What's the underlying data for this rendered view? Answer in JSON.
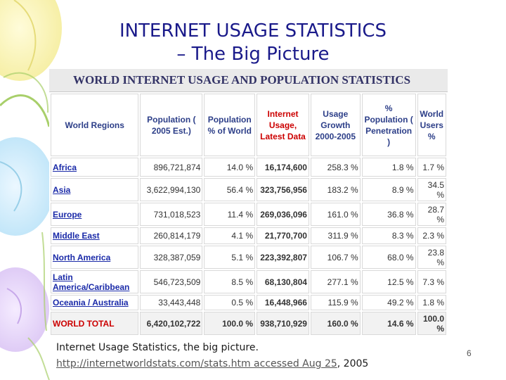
{
  "slide": {
    "title_line1": "INTERNET USAGE STATISTICS",
    "title_line2": "– The Big Picture",
    "page_number": "6"
  },
  "table": {
    "banner": "WORLD INTERNET USAGE AND POPULATION STATISTICS",
    "headers": [
      "World Regions",
      "Population ( 2005 Est.)",
      "Population % of World",
      "Internet Usage, Latest Data",
      "Usage Growth 2000-2005",
      "% Population ( Penetration )",
      "World Users %"
    ],
    "rows": [
      [
        "Africa",
        "896,721,874",
        "14.0 %",
        "16,174,600",
        "258.3 %",
        "1.8 %",
        "1.7 %"
      ],
      [
        "Asia",
        "3,622,994,130",
        "56.4 %",
        "323,756,956",
        "183.2 %",
        "8.9 %",
        "34.5 %"
      ],
      [
        "Europe",
        "731,018,523",
        "11.4 %",
        "269,036,096",
        "161.0 %",
        "36.8 %",
        "28.7 %"
      ],
      [
        "Middle East",
        "260,814,179",
        "4.1 %",
        "21,770,700",
        "311.9 %",
        "8.3 %",
        "2.3 %"
      ],
      [
        "North America",
        "328,387,059",
        "5.1 %",
        "223,392,807",
        "106.7 %",
        "68.0 %",
        "23.8 %"
      ],
      [
        "Latin America/Caribbean",
        "546,723,509",
        "8.5 %",
        "68,130,804",
        "277.1 %",
        "12.5 %",
        "7.3 %"
      ],
      [
        "Oceania / Australia",
        "33,443,448",
        "0.5 %",
        "16,448,966",
        "115.9 %",
        "49.2 %",
        "1.8 %"
      ],
      [
        "WORLD TOTAL",
        "6,420,102,722",
        "100.0 %",
        "938,710,929",
        "160.0 %",
        "14.6 %",
        "100.0 %"
      ]
    ]
  },
  "caption": {
    "text": "Internet Usage Statistics, the big picture.",
    "link": "http://internetworldstats.com/stats.htm accessed Aug 25",
    "suffix": ", 2005"
  }
}
